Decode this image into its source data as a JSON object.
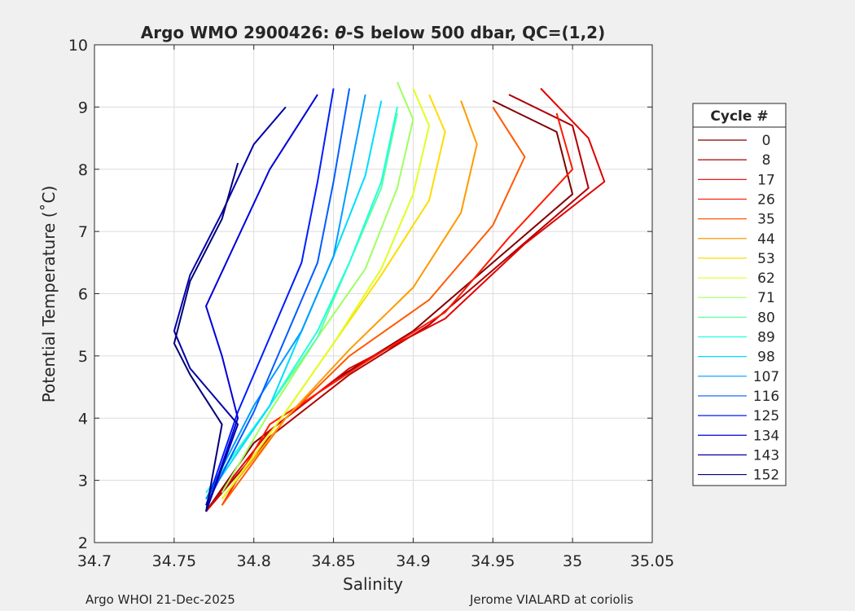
{
  "chart_data": {
    "type": "line",
    "title_prefix": "Argo WMO 2900426: ",
    "title_theta": "θ",
    "title_suffix": "-S below 500 dbar,  QC=(1,2)",
    "xlabel": "Salinity",
    "ylabel": "Potential Temperature (˚C)",
    "xlim": [
      34.7,
      35.05
    ],
    "ylim": [
      2,
      10
    ],
    "x_ticks": [
      {
        "v": 34.7,
        "label": "34.7"
      },
      {
        "v": 34.75,
        "label": "34.75"
      },
      {
        "v": 34.8,
        "label": "34.8"
      },
      {
        "v": 34.85,
        "label": "34.85"
      },
      {
        "v": 34.9,
        "label": "34.9"
      },
      {
        "v": 34.95,
        "label": "34.95"
      },
      {
        "v": 35.0,
        "label": "35"
      },
      {
        "v": 35.05,
        "label": "35.05"
      }
    ],
    "y_ticks": [
      {
        "v": 2,
        "label": "2"
      },
      {
        "v": 3,
        "label": "3"
      },
      {
        "v": 4,
        "label": "4"
      },
      {
        "v": 5,
        "label": "5"
      },
      {
        "v": 6,
        "label": "6"
      },
      {
        "v": 7,
        "label": "7"
      },
      {
        "v": 8,
        "label": "8"
      },
      {
        "v": 9,
        "label": "9"
      },
      {
        "v": 10,
        "label": "10"
      }
    ],
    "grid": true,
    "legend_title": "Cycle #",
    "legend_position": "outside-right",
    "series": [
      {
        "name": "0",
        "color": "#800000",
        "points": [
          [
            34.77,
            2.5
          ],
          [
            34.8,
            3.6
          ],
          [
            34.85,
            4.6
          ],
          [
            34.9,
            5.4
          ],
          [
            34.95,
            6.5
          ],
          [
            35.0,
            7.6
          ],
          [
            34.99,
            8.6
          ],
          [
            34.95,
            9.1
          ]
        ]
      },
      {
        "name": "8",
        "color": "#b00000",
        "points": [
          [
            34.77,
            2.5
          ],
          [
            34.81,
            3.7
          ],
          [
            34.86,
            4.7
          ],
          [
            34.91,
            5.5
          ],
          [
            34.96,
            6.6
          ],
          [
            35.01,
            7.7
          ],
          [
            35.0,
            8.7
          ],
          [
            34.96,
            9.2
          ]
        ]
      },
      {
        "name": "17",
        "color": "#e00000",
        "points": [
          [
            34.77,
            2.5
          ],
          [
            34.81,
            3.8
          ],
          [
            34.86,
            4.8
          ],
          [
            34.92,
            5.6
          ],
          [
            34.97,
            6.8
          ],
          [
            35.02,
            7.8
          ],
          [
            35.01,
            8.5
          ],
          [
            34.98,
            9.3
          ]
        ]
      },
      {
        "name": "26",
        "color": "#ff1a00",
        "points": [
          [
            34.78,
            2.6
          ],
          [
            34.81,
            3.9
          ],
          [
            34.87,
            4.9
          ],
          [
            34.92,
            5.7
          ],
          [
            34.96,
            6.9
          ],
          [
            35.0,
            8.0
          ],
          [
            34.99,
            8.9
          ]
        ]
      },
      {
        "name": "35",
        "color": "#ff5a00",
        "points": [
          [
            34.78,
            2.6
          ],
          [
            34.82,
            4.0
          ],
          [
            34.86,
            5.0
          ],
          [
            34.91,
            5.9
          ],
          [
            34.95,
            7.1
          ],
          [
            34.97,
            8.2
          ],
          [
            34.95,
            9.0
          ]
        ]
      },
      {
        "name": "44",
        "color": "#ff9a00",
        "points": [
          [
            34.78,
            2.7
          ],
          [
            34.82,
            4.0
          ],
          [
            34.86,
            5.1
          ],
          [
            34.9,
            6.1
          ],
          [
            34.93,
            7.3
          ],
          [
            34.94,
            8.4
          ],
          [
            34.93,
            9.1
          ]
        ]
      },
      {
        "name": "53",
        "color": "#ffdc00",
        "points": [
          [
            34.78,
            2.7
          ],
          [
            34.82,
            4.1
          ],
          [
            34.85,
            5.2
          ],
          [
            34.88,
            6.3
          ],
          [
            34.91,
            7.5
          ],
          [
            34.92,
            8.6
          ],
          [
            34.91,
            9.2
          ]
        ]
      },
      {
        "name": "62",
        "color": "#e0ff20",
        "points": [
          [
            34.78,
            2.7
          ],
          [
            34.82,
            4.1
          ],
          [
            34.85,
            5.2
          ],
          [
            34.88,
            6.4
          ],
          [
            34.9,
            7.6
          ],
          [
            34.91,
            8.7
          ],
          [
            34.9,
            9.3
          ]
        ]
      },
      {
        "name": "71",
        "color": "#a0ff60",
        "points": [
          [
            34.78,
            2.8
          ],
          [
            34.81,
            4.1
          ],
          [
            34.84,
            5.3
          ],
          [
            34.87,
            6.4
          ],
          [
            34.89,
            7.7
          ],
          [
            34.9,
            8.8
          ],
          [
            34.89,
            9.4
          ]
        ]
      },
      {
        "name": "80",
        "color": "#60ffa0",
        "points": [
          [
            34.77,
            2.8
          ],
          [
            34.81,
            4.2
          ],
          [
            34.84,
            5.3
          ],
          [
            34.86,
            6.5
          ],
          [
            34.88,
            7.7
          ],
          [
            34.89,
            8.9
          ]
        ]
      },
      {
        "name": "89",
        "color": "#20ffdf",
        "points": [
          [
            34.77,
            2.8
          ],
          [
            34.81,
            4.2
          ],
          [
            34.84,
            5.4
          ],
          [
            34.86,
            6.5
          ],
          [
            34.88,
            7.8
          ],
          [
            34.89,
            9.0
          ]
        ]
      },
      {
        "name": "98",
        "color": "#00dcff",
        "points": [
          [
            34.77,
            2.7
          ],
          [
            34.81,
            4.2
          ],
          [
            34.83,
            5.4
          ],
          [
            34.85,
            6.6
          ],
          [
            34.87,
            7.9
          ],
          [
            34.88,
            9.1
          ]
        ]
      },
      {
        "name": "107",
        "color": "#009cff",
        "points": [
          [
            34.77,
            2.7
          ],
          [
            34.8,
            4.2
          ],
          [
            34.83,
            5.4
          ],
          [
            34.85,
            6.6
          ],
          [
            34.86,
            7.9
          ],
          [
            34.87,
            9.2
          ]
        ]
      },
      {
        "name": "116",
        "color": "#005cff",
        "points": [
          [
            34.77,
            2.6
          ],
          [
            34.8,
            4.1
          ],
          [
            34.82,
            5.3
          ],
          [
            34.84,
            6.5
          ],
          [
            34.85,
            7.8
          ],
          [
            34.86,
            9.3
          ]
        ]
      },
      {
        "name": "125",
        "color": "#001cff",
        "points": [
          [
            34.77,
            2.6
          ],
          [
            34.79,
            4.1
          ],
          [
            34.81,
            5.3
          ],
          [
            34.83,
            6.5
          ],
          [
            34.84,
            7.8
          ],
          [
            34.85,
            9.3
          ]
        ]
      },
      {
        "name": "134",
        "color": "#0000d8",
        "points": [
          [
            34.77,
            2.5
          ],
          [
            34.79,
            4.0
          ],
          [
            34.78,
            5.0
          ],
          [
            34.77,
            5.8
          ],
          [
            34.79,
            6.9
          ],
          [
            34.81,
            8.0
          ],
          [
            34.84,
            9.2
          ]
        ]
      },
      {
        "name": "143",
        "color": "#0000a8",
        "points": [
          [
            34.77,
            2.5
          ],
          [
            34.79,
            3.9
          ],
          [
            34.76,
            4.8
          ],
          [
            34.75,
            5.4
          ],
          [
            34.76,
            6.3
          ],
          [
            34.78,
            7.3
          ],
          [
            34.8,
            8.4
          ],
          [
            34.82,
            9.0
          ]
        ]
      },
      {
        "name": "152",
        "color": "#000078",
        "points": [
          [
            34.77,
            2.5
          ],
          [
            34.78,
            3.9
          ],
          [
            34.76,
            4.7
          ],
          [
            34.75,
            5.2
          ],
          [
            34.76,
            6.2
          ],
          [
            34.78,
            7.2
          ],
          [
            34.79,
            8.1
          ]
        ]
      }
    ]
  },
  "footer": {
    "left": "Argo WHOI 21-Dec-2025",
    "right": "Jerome VIALARD at coriolis"
  }
}
